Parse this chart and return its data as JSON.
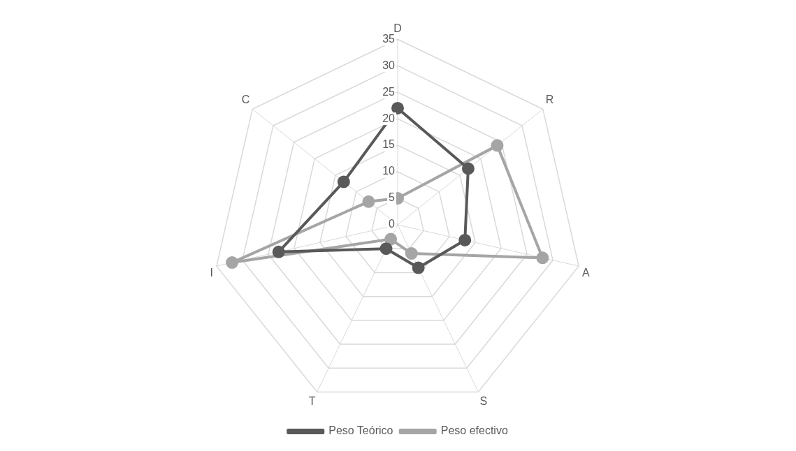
{
  "chart_data": {
    "type": "radar",
    "categories": [
      "D",
      "R",
      "A",
      "S",
      "T",
      "I",
      "C"
    ],
    "series": [
      {
        "name": "Peso Teórico",
        "color": "#595959",
        "values": [
          22,
          17,
          13,
          9,
          5,
          23,
          13
        ]
      },
      {
        "name": "Peso efectivo",
        "color": "#a5a5a5",
        "values": [
          5,
          24,
          28,
          6,
          3,
          32,
          7
        ]
      }
    ],
    "ylim": [
      0,
      35
    ],
    "yticks": [
      0,
      5,
      10,
      15,
      20,
      25,
      30,
      35
    ],
    "grid": true,
    "legend": "bottom",
    "marker": "circle"
  }
}
